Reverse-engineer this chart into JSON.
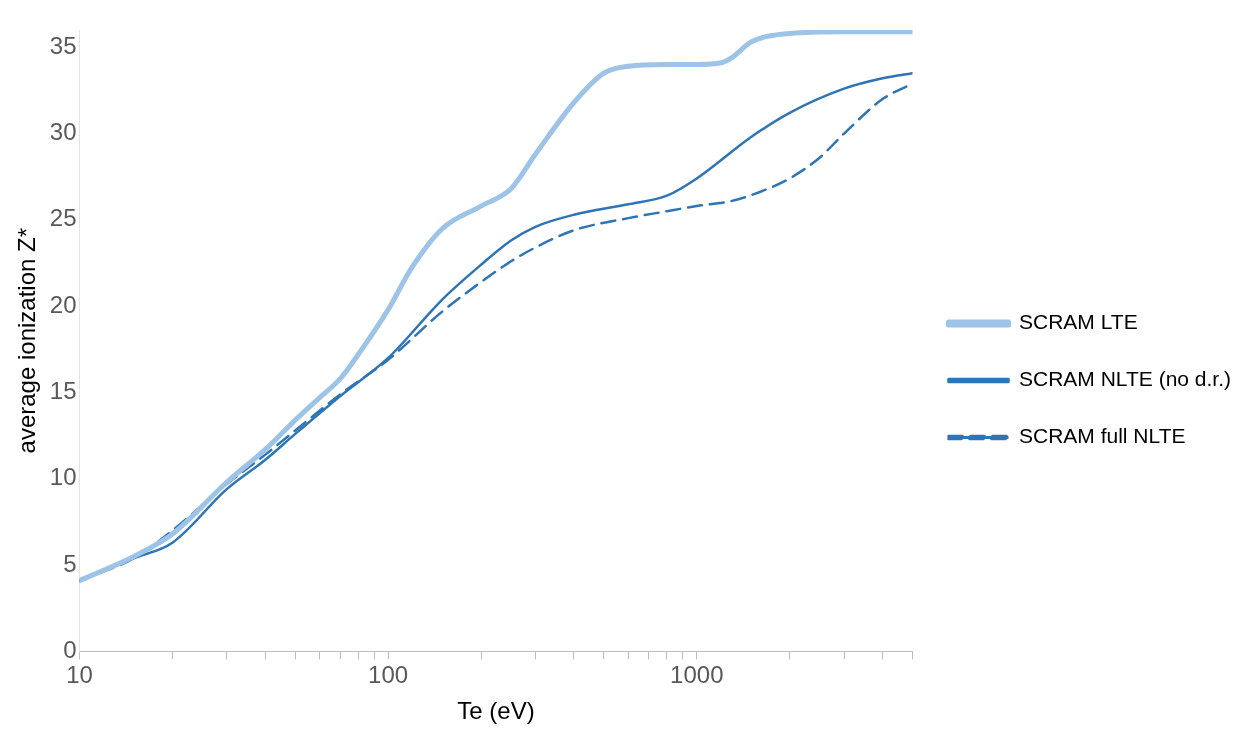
{
  "chart_data": {
    "type": "line",
    "xlabel": "Te (eV)",
    "ylabel": "average ionization Z*",
    "log": "x",
    "grid": false,
    "legend": "right",
    "marker": "none",
    "xlim": [
      10,
      5000
    ],
    "xticks": [
      10,
      {
        "value": 20,
        "label": null
      },
      {
        "value": 30,
        "label": null
      },
      {
        "value": 40,
        "label": null
      },
      {
        "value": 50,
        "label": null
      },
      {
        "value": 60,
        "label": null
      },
      {
        "value": 70,
        "label": null
      },
      {
        "value": 80,
        "label": null
      },
      {
        "value": 90,
        "label": null
      },
      100,
      {
        "value": 200,
        "label": null
      },
      {
        "value": 300,
        "label": null
      },
      {
        "value": 400,
        "label": null
      },
      {
        "value": 500,
        "label": null
      },
      {
        "value": 600,
        "label": null
      },
      {
        "value": 700,
        "label": null
      },
      {
        "value": 800,
        "label": null
      },
      {
        "value": 900,
        "label": null
      },
      1000,
      {
        "value": 2000,
        "label": null
      },
      {
        "value": 3000,
        "label": null
      },
      {
        "value": 4000,
        "label": null
      },
      {
        "value": 5000,
        "label": null
      }
    ],
    "ylim": [
      0,
      36
    ],
    "yticks": [
      0,
      5,
      10,
      15,
      20,
      25,
      30,
      35
    ],
    "series": [
      {
        "name": "SCRAM LTE",
        "color": "#9dc3e6",
        "line_style": "solid",
        "x": [
          10,
          15,
          20,
          30,
          40,
          50,
          60,
          70,
          80,
          100,
          120,
          150,
          200,
          250,
          300,
          400,
          500,
          600,
          800,
          1000,
          1200,
          1300,
          1500,
          2000,
          3000,
          5000
        ],
        "values": [
          4.1,
          5.5,
          6.8,
          9.8,
          11.7,
          13.4,
          14.7,
          15.8,
          17.2,
          19.8,
          22.3,
          24.5,
          25.8,
          26.8,
          28.8,
          31.8,
          33.5,
          33.9,
          34,
          34,
          34.1,
          34.4,
          35.3,
          35.8,
          35.9,
          35.9
        ]
      },
      {
        "name": "SCRAM NLTE (no d.r.)",
        "color": "#2e75b6",
        "line_style": "solid",
        "x": [
          10,
          15,
          20,
          30,
          40,
          50,
          70,
          100,
          150,
          200,
          250,
          300,
          400,
          600,
          800,
          1000,
          1500,
          2000,
          3000,
          4000,
          5000
        ],
        "values": [
          4.1,
          5.4,
          6.3,
          9.4,
          11.1,
          12.6,
          14.8,
          17,
          20.4,
          22.4,
          23.8,
          24.6,
          25.3,
          25.9,
          26.4,
          27.4,
          29.8,
          31.2,
          32.6,
          33.2,
          33.5
        ]
      },
      {
        "name": "SCRAM full NLTE",
        "color": "#2e75b6",
        "line_style": "dashed",
        "x": [
          10,
          15,
          20,
          30,
          40,
          50,
          70,
          100,
          150,
          200,
          250,
          300,
          400,
          600,
          800,
          1000,
          1300,
          1700,
          2000,
          2500,
          3000,
          4000,
          5000
        ],
        "values": [
          4.1,
          5.4,
          7,
          9.7,
          11.4,
          12.8,
          14.9,
          16.9,
          19.7,
          21.4,
          22.6,
          23.4,
          24.4,
          25.1,
          25.5,
          25.8,
          26.1,
          26.8,
          27.4,
          28.6,
          30,
          32,
          32.9
        ]
      }
    ]
  }
}
